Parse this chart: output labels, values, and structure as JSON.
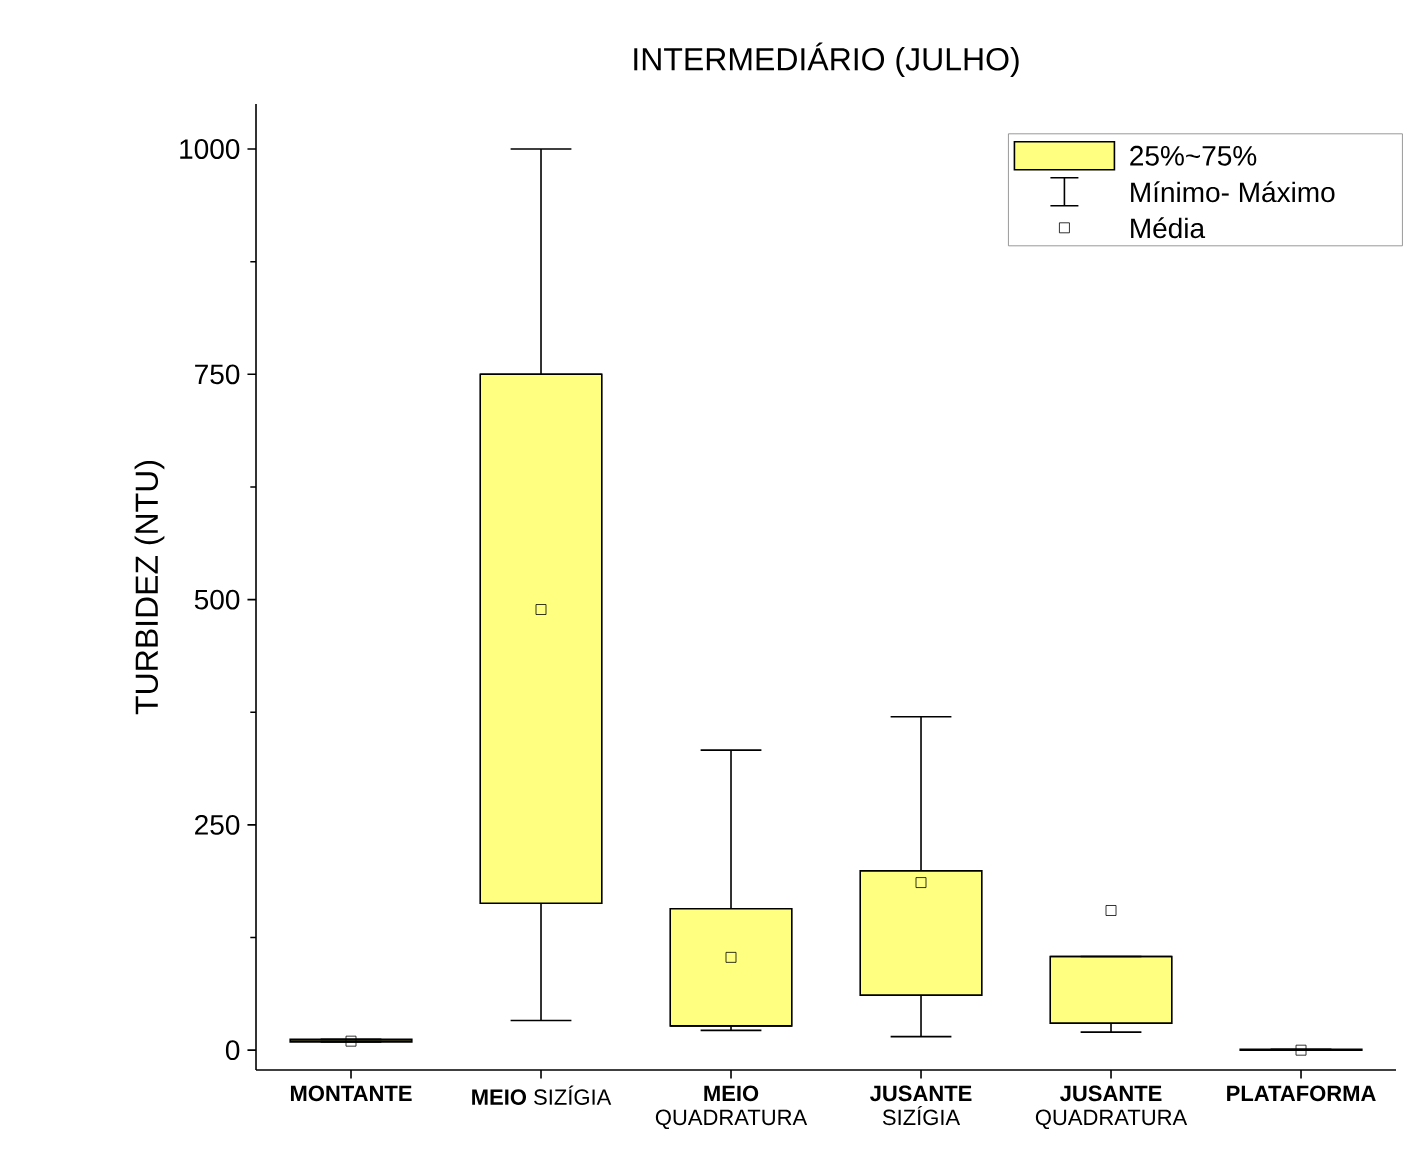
{
  "chart_data": {
    "type": "box",
    "title": "INTERMEDIÁRIO (JULHO)",
    "ylabel": "TURBIDEZ (NTU)",
    "categories": [
      "**MONTANTE**",
      "**MEIO** SIZÍGIA",
      "**MEIO** QUADRATURA",
      "**JUSANTE** SIZÍGIA",
      "**JUSANTE** QUADRATURA",
      "**PLATAFORMA**"
    ],
    "ylim": [
      -22,
      1050
    ],
    "yticks": [
      0,
      250,
      500,
      750,
      1000
    ],
    "legend": "top right",
    "annotations": [
      "Mínimo- Máximo"
    ],
    "series": [
      {
        "name": "25%~75%",
        "color": "#ffff80",
        "boxes": [
          {
            "low": 9,
            "q1": 9,
            "median": 10,
            "q3": 12,
            "high": 12
          },
          {
            "low": 33,
            "q1": 163,
            "median": 750,
            "q3": 750,
            "high": 1000
          },
          {
            "low": 22,
            "q1": 27,
            "median": 27,
            "q3": 157,
            "high": 333
          },
          {
            "low": 15,
            "q1": 61,
            "median": 61,
            "q3": 199,
            "high": 370
          },
          {
            "low": 20,
            "q1": 30,
            "median": 104,
            "q3": 104,
            "high": 104
          },
          {
            "low": 0,
            "q1": 0,
            "median": 0,
            "q3": 1,
            "high": 1
          }
        ]
      },
      {
        "type": "scatter",
        "name": "Média",
        "marker": "square",
        "color": "#000000",
        "x": [
          "**MONTANTE**",
          "**MEIO** SIZÍGIA",
          "**MEIO** QUADRATURA",
          "**JUSANTE** SIZÍGIA",
          "**JUSANTE** QUADRATURA",
          "**PLATAFORMA**"
        ],
        "values": [
          10,
          489,
          103,
          186,
          155,
          0
        ]
      }
    ]
  }
}
